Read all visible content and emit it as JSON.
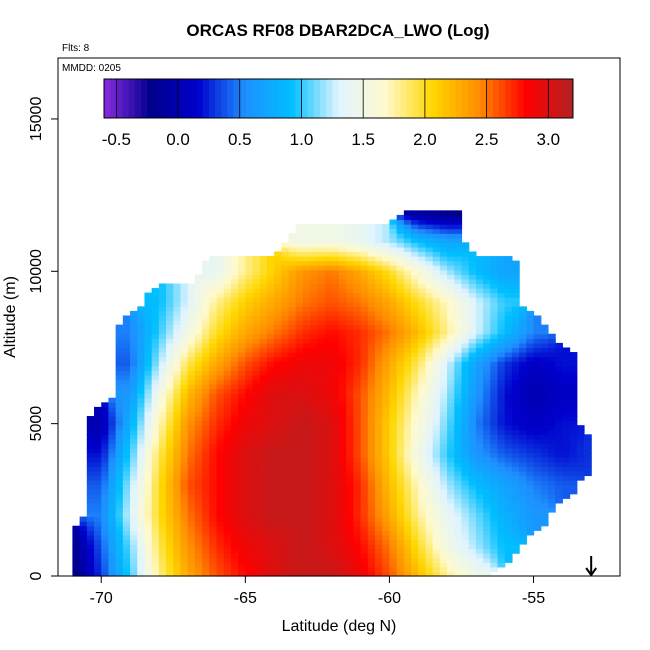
{
  "chart_data": {
    "type": "heatmap",
    "title": "ORCAS RF08 DBAR2DCA_LWO (Log)",
    "annotations": {
      "flights": "Flts: 8",
      "date": "MMDD: 0205"
    },
    "xlabel": "Latitude (deg N)",
    "ylabel": "Altitude (m)",
    "xlim": [
      -71.5,
      -52.0
    ],
    "ylim": [
      0,
      17000
    ],
    "x_ticks": [
      -70,
      -65,
      -60,
      -55
    ],
    "x_tick_labels": [
      "-70",
      "-65",
      "-60",
      "-55"
    ],
    "y_ticks": [
      0,
      5000,
      10000,
      15000
    ],
    "y_tick_labels": [
      "0",
      "5000",
      "10000",
      "15000"
    ],
    "colorbar": {
      "range": [
        -0.6,
        3.2
      ],
      "ticks": [
        -0.5,
        0.0,
        0.5,
        1.0,
        1.5,
        2.0,
        2.5,
        3.0
      ],
      "tick_labels": [
        "-0.5",
        "0.0",
        "0.5",
        "1.0",
        "1.5",
        "2.0",
        "2.5",
        "3.0"
      ],
      "colors": [
        "#8a2be2",
        "#00008b",
        "#0000cd",
        "#1e90ff",
        "#00bfff",
        "#e0f4ff",
        "#fffacd",
        "#ffd700",
        "#ff8c00",
        "#ff0000",
        "#b22222"
      ]
    },
    "value_field": {
      "lat_grid": [
        -71.0,
        -70.0,
        -69.0,
        -68.0,
        -67.0,
        -66.0,
        -65.0,
        -64.0,
        -63.0,
        -62.0,
        -61.0,
        -60.0,
        -59.0,
        -58.0,
        -57.0,
        -56.0,
        -55.0,
        -54.0,
        -53.0
      ],
      "alt_grid": [
        0,
        1000,
        2000,
        3000,
        4000,
        5000,
        6000,
        7000,
        8000,
        9000,
        10000,
        11000,
        12000
      ],
      "values": [
        [
          -0.3,
          0.3,
          1.0,
          1.8,
          2.3,
          2.6,
          2.8,
          3.0,
          3.1,
          3.1,
          2.9,
          2.6,
          2.2,
          1.8,
          1.5,
          null,
          null,
          null,
          null
        ],
        [
          -0.2,
          0.4,
          1.1,
          1.9,
          2.4,
          2.7,
          2.9,
          3.0,
          3.1,
          3.0,
          2.8,
          2.5,
          2.0,
          1.5,
          1.2,
          0.9,
          null,
          null,
          null
        ],
        [
          null,
          0.5,
          1.3,
          2.0,
          2.5,
          2.8,
          3.0,
          3.1,
          3.1,
          3.0,
          2.7,
          2.3,
          1.8,
          1.4,
          1.1,
          0.8,
          0.6,
          null,
          null
        ],
        [
          null,
          0.4,
          1.2,
          2.0,
          2.6,
          2.8,
          3.0,
          3.1,
          3.1,
          3.0,
          2.7,
          2.2,
          1.7,
          1.2,
          0.9,
          0.7,
          0.5,
          0.4,
          null
        ],
        [
          null,
          0.2,
          1.0,
          1.9,
          2.5,
          2.8,
          3.0,
          3.1,
          3.1,
          3.0,
          2.6,
          2.1,
          1.5,
          1.0,
          0.6,
          0.4,
          0.3,
          0.2,
          0.3
        ],
        [
          null,
          0.0,
          0.8,
          1.7,
          2.4,
          2.7,
          2.9,
          3.0,
          3.1,
          3.0,
          2.6,
          2.1,
          1.6,
          1.1,
          0.5,
          0.2,
          0.1,
          0.2,
          null
        ],
        [
          null,
          null,
          0.6,
          1.5,
          2.2,
          2.6,
          2.8,
          3.0,
          3.0,
          2.9,
          2.6,
          2.2,
          1.7,
          1.2,
          0.6,
          0.2,
          0.0,
          0.1,
          null
        ],
        [
          null,
          null,
          0.4,
          1.2,
          1.9,
          2.3,
          2.6,
          2.8,
          2.9,
          2.9,
          2.7,
          2.3,
          1.9,
          1.3,
          0.7,
          0.3,
          0.1,
          0.2,
          null
        ],
        [
          null,
          null,
          0.5,
          1.0,
          1.5,
          2.0,
          2.3,
          2.5,
          2.7,
          2.8,
          2.7,
          2.5,
          2.2,
          1.8,
          1.3,
          0.9,
          0.5,
          null,
          null
        ],
        [
          null,
          null,
          null,
          0.9,
          1.3,
          1.8,
          2.1,
          2.3,
          2.5,
          2.6,
          2.5,
          2.3,
          2.0,
          1.7,
          1.3,
          1.0,
          null,
          null,
          null
        ],
        [
          null,
          null,
          null,
          null,
          null,
          1.4,
          1.8,
          2.1,
          2.4,
          2.5,
          2.3,
          2.0,
          1.6,
          1.2,
          0.9,
          0.7,
          null,
          null,
          null
        ],
        [
          null,
          null,
          null,
          null,
          null,
          null,
          null,
          null,
          1.5,
          1.5,
          1.4,
          1.2,
          0.9,
          0.7,
          null,
          null,
          null,
          null,
          null
        ],
        [
          null,
          null,
          null,
          null,
          null,
          null,
          null,
          null,
          null,
          null,
          null,
          null,
          -0.2,
          -0.3,
          null,
          null,
          null,
          null,
          null
        ]
      ]
    },
    "arrow_marker": {
      "lat": -53.0,
      "alt": 0,
      "direction": "down"
    }
  }
}
